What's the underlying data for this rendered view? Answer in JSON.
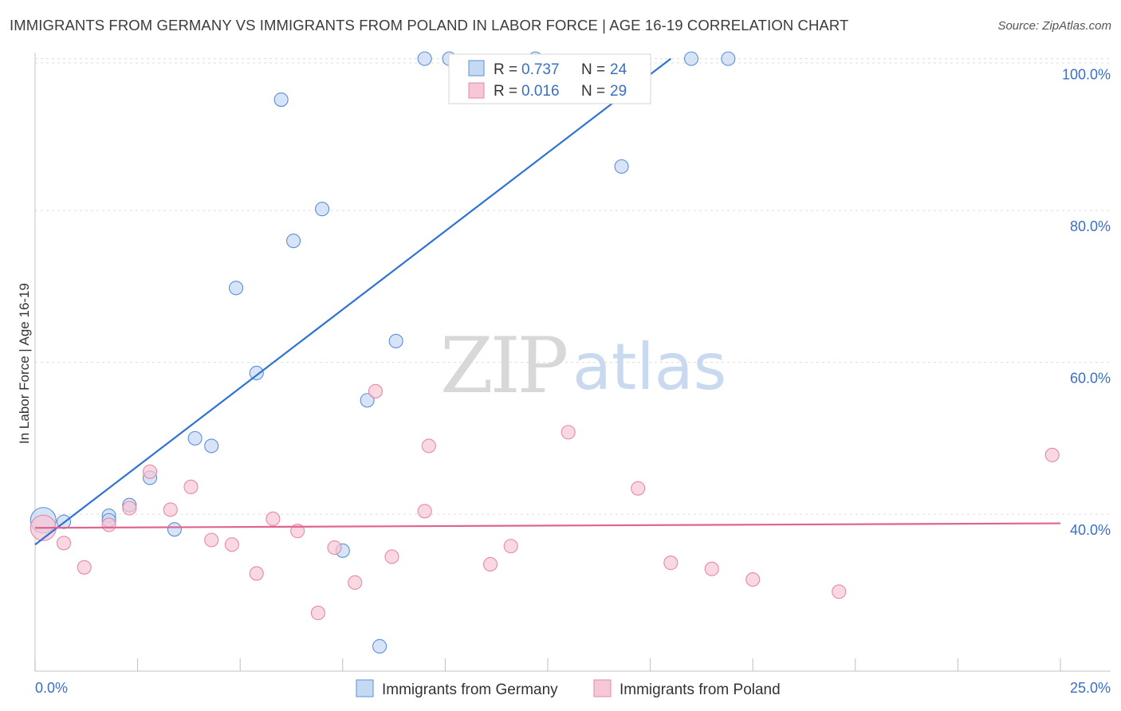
{
  "title": "IMMIGRANTS FROM GERMANY VS IMMIGRANTS FROM POLAND IN LABOR FORCE | AGE 16-19 CORRELATION CHART",
  "source": "Source: ZipAtlas.com",
  "watermark": {
    "zip": "ZIP",
    "atlas": "atlas"
  },
  "chart_data": {
    "type": "scatter",
    "xlabel": "",
    "ylabel": "In Labor Force | Age 16-19",
    "xlim": [
      0,
      25
    ],
    "ylim": [
      20.8,
      100.8
    ],
    "x_tick_labels": [
      "0.0%",
      "25.0%"
    ],
    "y_ticks": [
      40,
      60,
      80,
      100
    ],
    "y_tick_labels": [
      "40.0%",
      "60.0%",
      "80.0%",
      "100.0%"
    ],
    "grid": true,
    "legend": {
      "placement": "top-center",
      "entries": [
        {
          "r_label": "R =",
          "r_value": "0.737",
          "n_label": "N =",
          "n_value": "24"
        },
        {
          "r_label": "R =",
          "r_value": "0.016",
          "n_label": "N =",
          "n_value": "29"
        }
      ]
    },
    "series": [
      {
        "name": "Immigrants from Germany",
        "color": "#5b8fd8",
        "fill": "#c6d9f3",
        "trend": {
          "x": [
            0,
            15.5
          ],
          "y": [
            36.0,
            100.0
          ],
          "color": "#2f72d6"
        },
        "points": [
          {
            "x": 0.2,
            "y": 39.2,
            "big": true
          },
          {
            "x": 0.7,
            "y": 39.0
          },
          {
            "x": 1.8,
            "y": 39.8
          },
          {
            "x": 1.8,
            "y": 39.2
          },
          {
            "x": 2.3,
            "y": 41.2
          },
          {
            "x": 2.8,
            "y": 44.8
          },
          {
            "x": 3.4,
            "y": 38.0
          },
          {
            "x": 3.9,
            "y": 50.0
          },
          {
            "x": 4.3,
            "y": 49.0
          },
          {
            "x": 4.9,
            "y": 69.8
          },
          {
            "x": 5.4,
            "y": 58.6
          },
          {
            "x": 6.0,
            "y": 94.6
          },
          {
            "x": 6.3,
            "y": 76.0
          },
          {
            "x": 7.0,
            "y": 80.2
          },
          {
            "x": 7.5,
            "y": 35.2
          },
          {
            "x": 8.1,
            "y": 55.0
          },
          {
            "x": 8.4,
            "y": 22.6
          },
          {
            "x": 8.8,
            "y": 62.8
          },
          {
            "x": 9.5,
            "y": 100.0
          },
          {
            "x": 10.1,
            "y": 100.0
          },
          {
            "x": 12.2,
            "y": 100.0
          },
          {
            "x": 14.3,
            "y": 85.8
          },
          {
            "x": 16.0,
            "y": 100.0
          },
          {
            "x": 16.9,
            "y": 100.0
          }
        ]
      },
      {
        "name": "Immigrants from Poland",
        "color": "#e68aa6",
        "fill": "#f6c7d6",
        "trend": {
          "x": [
            0,
            25
          ],
          "y": [
            38.2,
            38.8
          ],
          "color": "#e0648d"
        },
        "points": [
          {
            "x": 0.2,
            "y": 38.2,
            "big": true
          },
          {
            "x": 0.7,
            "y": 36.2
          },
          {
            "x": 1.2,
            "y": 33.0
          },
          {
            "x": 1.8,
            "y": 38.6
          },
          {
            "x": 2.3,
            "y": 40.8
          },
          {
            "x": 2.8,
            "y": 45.6
          },
          {
            "x": 3.3,
            "y": 40.6
          },
          {
            "x": 3.8,
            "y": 43.6
          },
          {
            "x": 4.3,
            "y": 36.6
          },
          {
            "x": 4.8,
            "y": 36.0
          },
          {
            "x": 5.4,
            "y": 32.2
          },
          {
            "x": 5.8,
            "y": 39.4
          },
          {
            "x": 6.4,
            "y": 37.8
          },
          {
            "x": 6.9,
            "y": 27.0
          },
          {
            "x": 7.3,
            "y": 35.6
          },
          {
            "x": 7.8,
            "y": 31.0
          },
          {
            "x": 8.3,
            "y": 56.2
          },
          {
            "x": 8.7,
            "y": 34.4
          },
          {
            "x": 9.5,
            "y": 40.4
          },
          {
            "x": 9.6,
            "y": 49.0
          },
          {
            "x": 11.1,
            "y": 33.4
          },
          {
            "x": 11.6,
            "y": 35.8
          },
          {
            "x": 13.0,
            "y": 50.8
          },
          {
            "x": 14.7,
            "y": 43.4
          },
          {
            "x": 15.5,
            "y": 33.6
          },
          {
            "x": 16.5,
            "y": 32.8
          },
          {
            "x": 17.5,
            "y": 31.4
          },
          {
            "x": 19.6,
            "y": 29.8
          },
          {
            "x": 24.8,
            "y": 47.8
          }
        ]
      }
    ]
  }
}
